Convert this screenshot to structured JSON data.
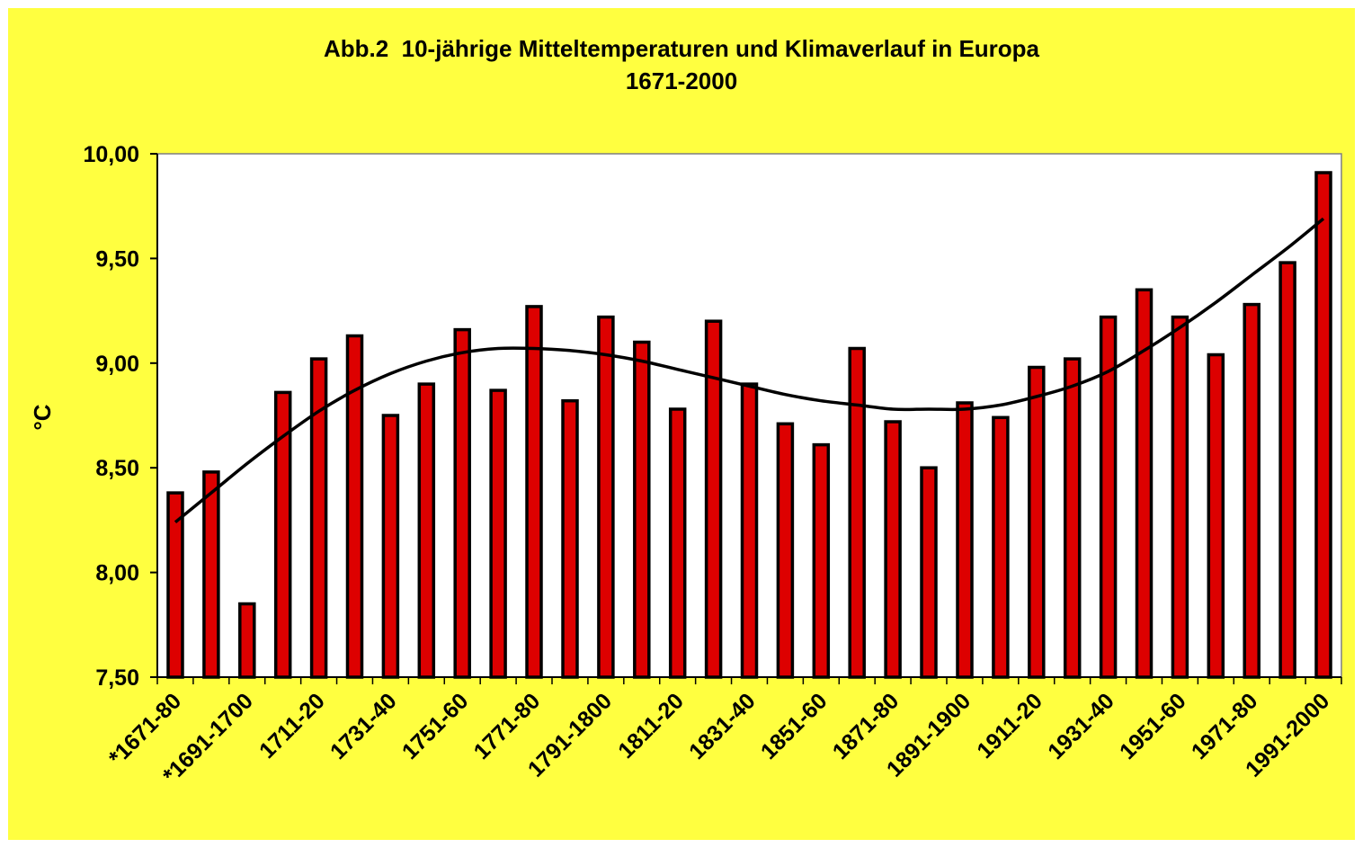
{
  "colors": {
    "background": "#ffff40",
    "plot_area": "#ffffff",
    "bar_fill": "#dd0000",
    "bar_outline": "#000000",
    "trend_line": "#000000"
  },
  "chart_data": {
    "type": "bar",
    "title": "Abb.2  10-jährige Mitteltemperaturen und Klimaverlauf in Europa",
    "subtitle": "1671-2000",
    "xlabel": "",
    "ylabel": "°C",
    "ylim": [
      7.5,
      10.0
    ],
    "yticks": [
      7.5,
      8.0,
      8.5,
      9.0,
      9.5,
      10.0
    ],
    "ytick_labels": [
      "7,50",
      "8,00",
      "8,50",
      "9,00",
      "9,50",
      "10,00"
    ],
    "grid": false,
    "legend": "none",
    "categories": [
      "*1671-80",
      "*1681-90",
      "*1691-1700",
      "1701-10",
      "1711-20",
      "1721-30",
      "1731-40",
      "1741-50",
      "1751-60",
      "1761-70",
      "1771-80",
      "1781-90",
      "1791-1800",
      "1801-10",
      "1811-20",
      "1821-30",
      "1831-40",
      "1841-50",
      "1851-60",
      "1861-70",
      "1871-80",
      "1881-90",
      "1891-1900",
      "1901-10",
      "1911-20",
      "1921-30",
      "1931-40",
      "1941-50",
      "1951-60",
      "1961-70",
      "1971-80",
      "1981-90",
      "1991-2000"
    ],
    "visible_category_labels": [
      "*1671-80",
      "*1691-1700",
      "1711-20",
      "1731-40",
      "1751-60",
      "1771-80",
      "1791-1800",
      "1811-20",
      "1831-40",
      "1851-60",
      "1871-80",
      "1891-1900",
      "1911-20",
      "1931-40",
      "1951-60",
      "1971-80",
      "1991-2000"
    ],
    "label_every": 2,
    "series": [
      {
        "values": [
          8.38,
          8.48,
          7.85,
          8.86,
          9.02,
          9.13,
          8.75,
          8.9,
          9.16,
          8.87,
          9.27,
          8.82,
          9.22,
          9.1,
          8.78,
          9.2,
          8.9,
          8.71,
          8.61,
          9.07,
          8.72,
          8.5,
          8.81,
          8.74,
          8.98,
          9.02,
          9.22,
          9.35,
          9.22,
          9.04,
          9.28,
          9.48,
          9.91
        ]
      }
    ],
    "trendline": {
      "type": "polynomial",
      "values": [
        8.24,
        8.38,
        8.52,
        8.65,
        8.77,
        8.87,
        8.95,
        9.01,
        9.05,
        9.07,
        9.07,
        9.06,
        9.04,
        9.01,
        8.97,
        8.93,
        8.89,
        8.85,
        8.82,
        8.8,
        8.78,
        8.78,
        8.78,
        8.8,
        8.84,
        8.89,
        8.96,
        9.06,
        9.17,
        9.29,
        9.42,
        9.55,
        9.69
      ]
    }
  }
}
